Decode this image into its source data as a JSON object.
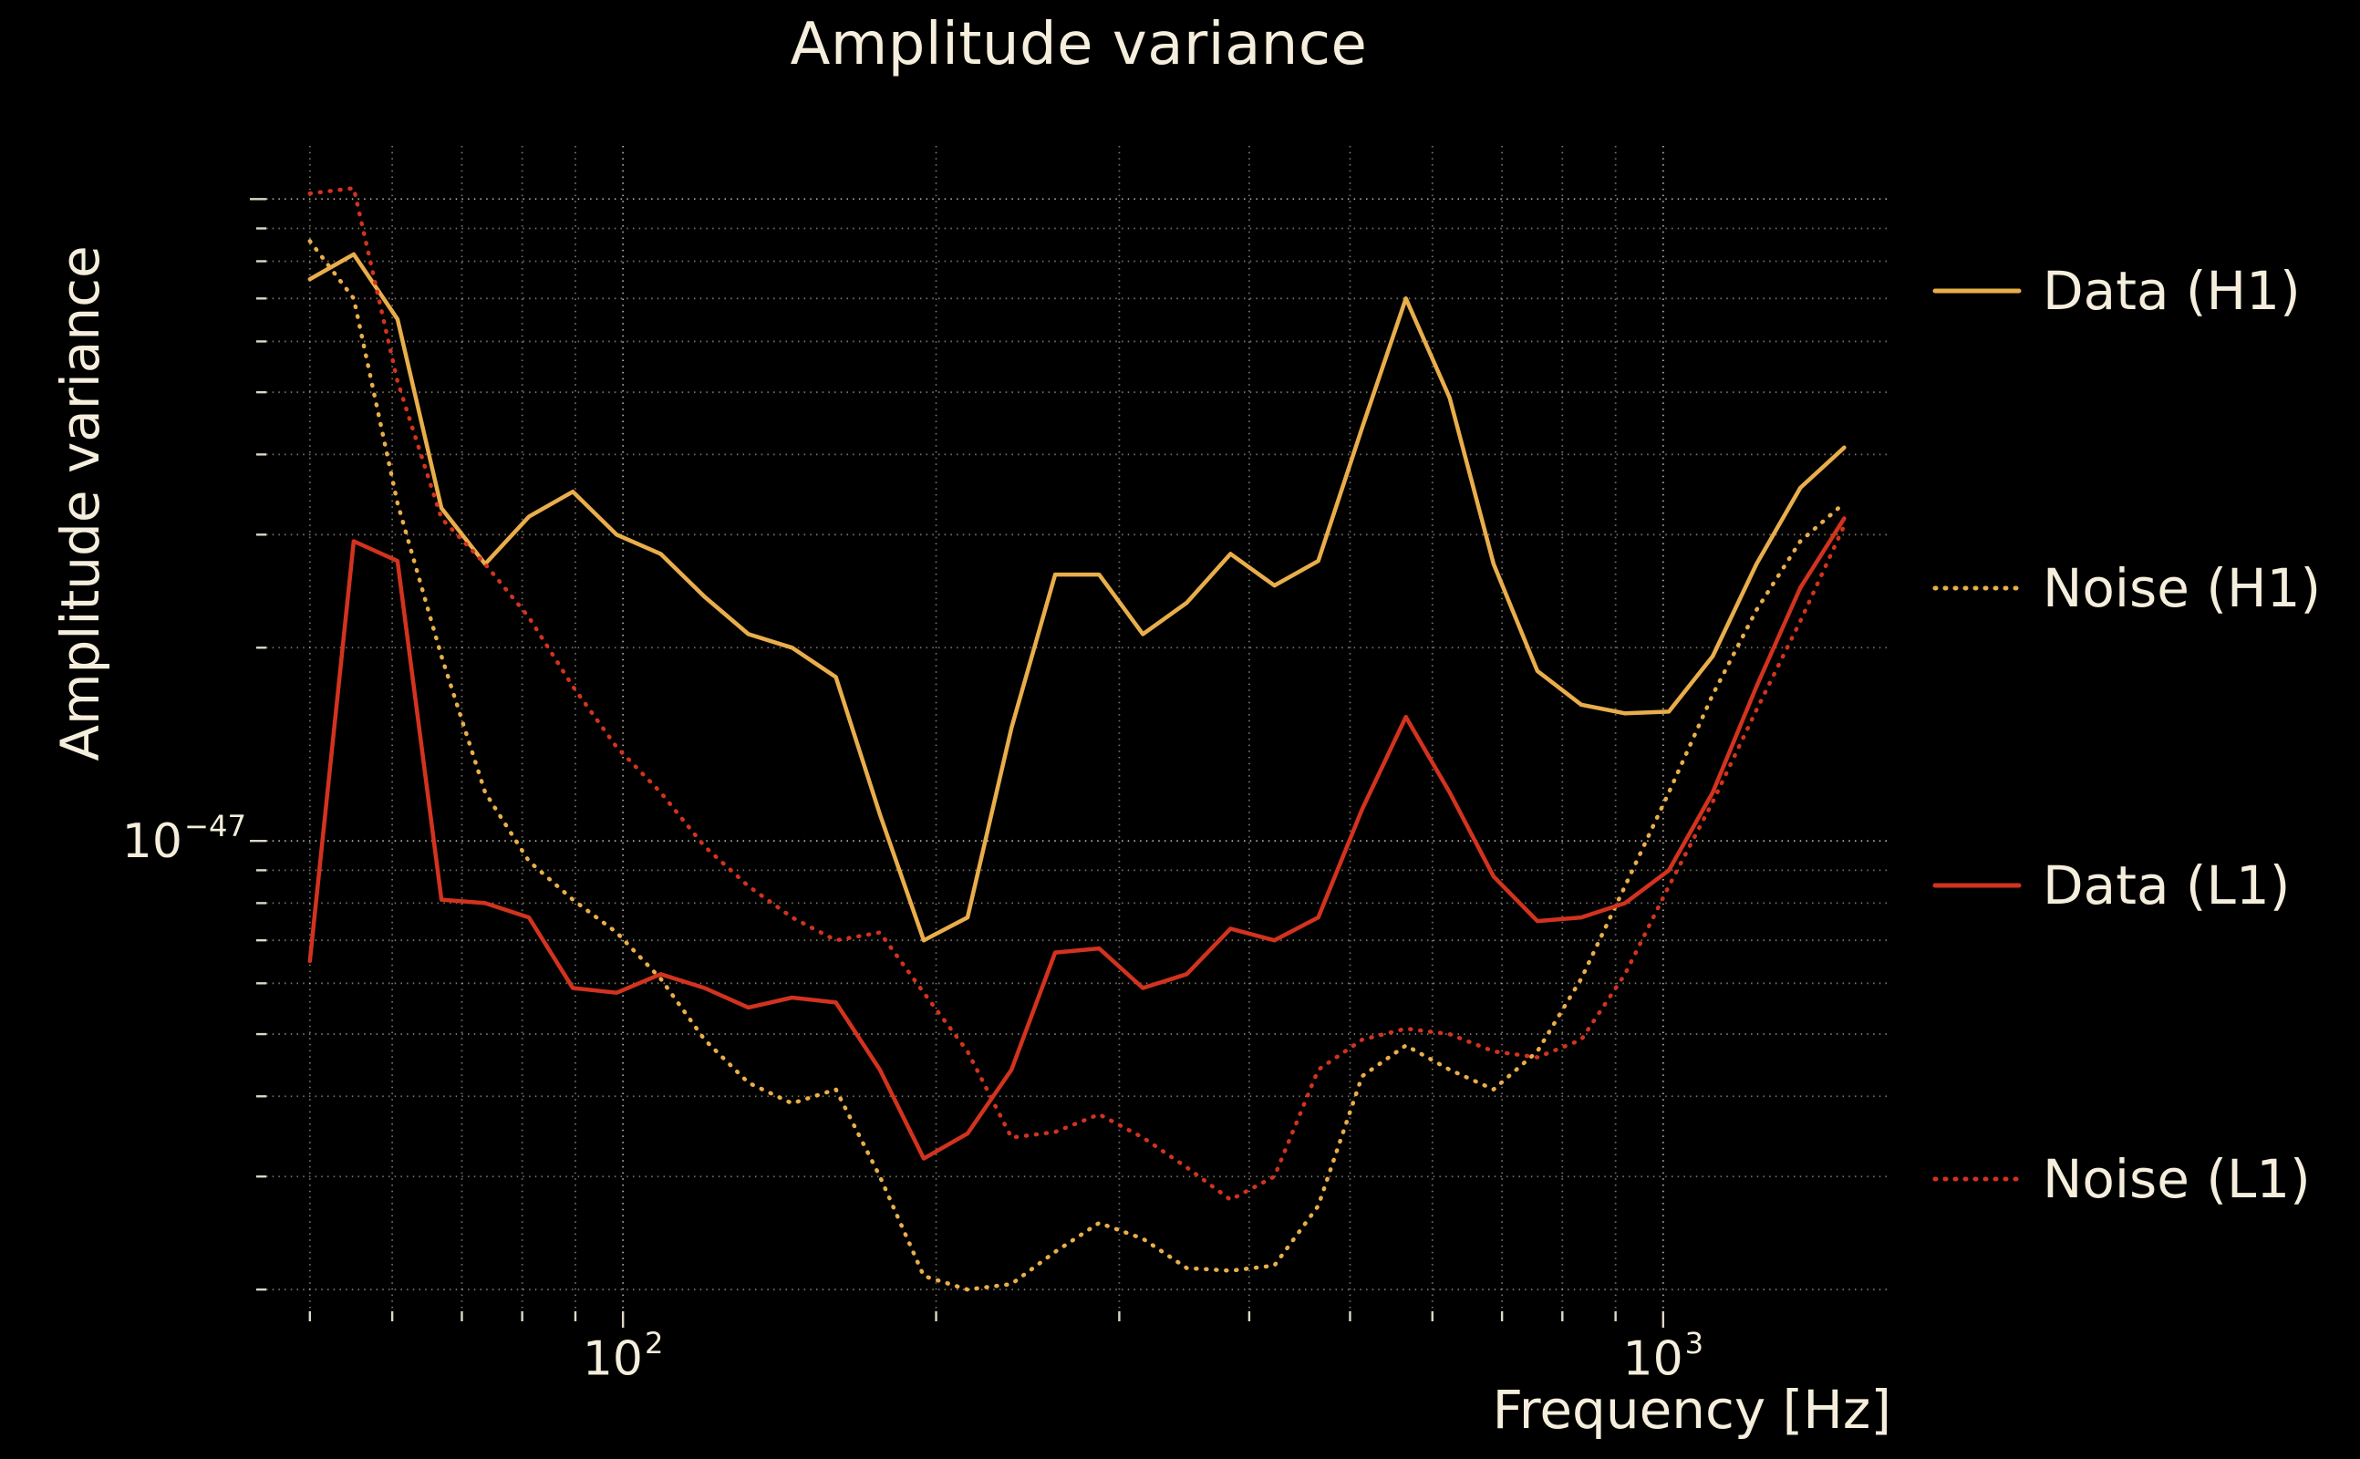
{
  "figure": {
    "background": "#000000",
    "text_color": "#F5EEDC"
  },
  "chart_data": {
    "type": "line",
    "title": "Amplitude variance",
    "xlabel": "Frequency [Hz]",
    "ylabel": "Amplitude variance",
    "x_scale": "log",
    "y_scale": "log",
    "grid": true,
    "grid_style": "dotted",
    "grid_color": "#F5EEDC",
    "legend_position": "right-outside",
    "xlim": [
      45.4,
      1657
    ],
    "ylim": [
      1.85e-48,
      1.21e-46
    ],
    "x": [
      50,
      55.1,
      60.7,
      66.9,
      73.7,
      81.2,
      89.5,
      98.6,
      108.7,
      119.8,
      132.0,
      145.4,
      160.2,
      176.6,
      194.6,
      214.4,
      236.3,
      260.3,
      286.9,
      316.1,
      348.3,
      383.8,
      422.9,
      466.0,
      513.5,
      565.8,
      623.4,
      687.0,
      757.0,
      834.1,
      919.1,
      1012.7,
      1115.9,
      1229.6,
      1354.9,
      1493.0
    ],
    "series": [
      {
        "id": "data-h1",
        "name": "Data (H1)",
        "color": "#E9AE4B",
        "style": "solid",
        "values": [
          7.5e-47,
          8.2e-47,
          6.5e-47,
          3.3e-47,
          2.7e-47,
          3.2e-47,
          3.5e-47,
          3e-47,
          2.8e-47,
          2.4e-47,
          2.1e-47,
          2e-47,
          1.8e-47,
          1.1e-47,
          7e-48,
          7.6e-48,
          1.5e-47,
          2.6e-47,
          2.6e-47,
          2.1e-47,
          2.35e-47,
          2.8e-47,
          2.5e-47,
          2.73e-47,
          4.4e-47,
          7e-47,
          4.9e-47,
          2.7e-47,
          1.84e-47,
          1.63e-47,
          1.58e-47,
          1.59e-47,
          1.94e-47,
          2.7e-47,
          3.55e-47,
          4.1e-47
        ]
      },
      {
        "id": "noise-h1",
        "name": "Noise (H1)",
        "color": "#E9AE4B",
        "style": "dotted",
        "values": [
          8.6e-47,
          7e-47,
          3.36e-47,
          1.94e-47,
          1.19e-47,
          9.3e-48,
          8.1e-48,
          7.2e-48,
          6.1e-48,
          4.9e-48,
          4.2e-48,
          3.9e-48,
          4.1e-48,
          3e-48,
          2.1e-48,
          2e-48,
          2.04e-48,
          2.29e-48,
          2.54e-48,
          2.4e-48,
          2.16e-48,
          2.14e-48,
          2.18e-48,
          2.7e-48,
          4.3e-48,
          4.8e-48,
          4.4e-48,
          4.1e-48,
          4.7e-48,
          6.1e-48,
          8.5e-48,
          1.19e-47,
          1.69e-47,
          2.29e-47,
          2.93e-47,
          3.36e-47
        ]
      },
      {
        "id": "data-l1",
        "name": "Data (L1)",
        "color": "#D2331F",
        "style": "solid",
        "values": [
          6.5e-48,
          2.93e-47,
          2.73e-47,
          8.1e-48,
          8e-48,
          7.6e-48,
          5.9e-48,
          5.8e-48,
          6.2e-48,
          5.9e-48,
          5.5e-48,
          5.7e-48,
          5.6e-48,
          4.4e-48,
          3.2e-48,
          3.5e-48,
          4.4e-48,
          6.7e-48,
          6.8e-48,
          5.9e-48,
          6.2e-48,
          7.3e-48,
          7e-48,
          7.6e-48,
          1.12e-47,
          1.56e-47,
          1.19e-47,
          8.8e-48,
          7.5e-48,
          7.6e-48,
          8e-48,
          9e-48,
          1.19e-47,
          1.74e-47,
          2.48e-47,
          3.18e-47
        ]
      },
      {
        "id": "noise-l1",
        "name": "Noise (L1)",
        "color": "#D2331F",
        "style": "dotted",
        "values": [
          1.02e-46,
          1.04e-46,
          5.2e-47,
          3.18e-47,
          2.7e-47,
          2.23e-47,
          1.74e-47,
          1.4e-47,
          1.19e-47,
          9.8e-48,
          8.5e-48,
          7.6e-48,
          7e-48,
          7.2e-48,
          5.8e-48,
          4.7e-48,
          3.45e-48,
          3.52e-48,
          3.75e-48,
          3.45e-48,
          3.1e-48,
          2.76e-48,
          3e-48,
          4.4e-48,
          4.9e-48,
          5.1e-48,
          5e-48,
          4.7e-48,
          4.6e-48,
          4.9e-48,
          6.2e-48,
          8.5e-48,
          1.15e-47,
          1.6e-47,
          2.2e-47,
          3.1e-47
        ]
      }
    ],
    "xticks": [
      {
        "value": 100,
        "base": "10",
        "exp": "2"
      },
      {
        "value": 1000,
        "base": "10",
        "exp": "3"
      }
    ],
    "yticks": [
      {
        "value": 1e-47,
        "base": "10",
        "exp": "−47"
      }
    ]
  }
}
